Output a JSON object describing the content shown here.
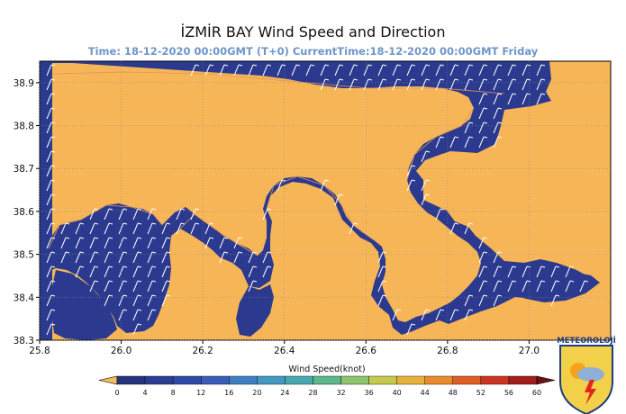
{
  "title": "İZMİR BAY  Wind Speed and Direction",
  "subtitle": "Time: 18-12-2020 00:00GMT (T+0)  CurrentTime:18-12-2020 00:00GMT Friday",
  "map": {
    "lon_range": [
      25.8,
      27.2
    ],
    "lat_range": [
      38.3,
      38.95
    ],
    "lon_ticks": [
      "25.8",
      "26.0",
      "26.2",
      "26.4",
      "26.6",
      "26.8",
      "27.0"
    ],
    "lat_ticks": [
      "38.9",
      "38.8",
      "38.7",
      "38.6",
      "38.5",
      "38.4",
      "38.3"
    ],
    "grid": true,
    "sea_color": "#2b3a8f",
    "land_color": "#f6b557",
    "barb_color": "#ffffff"
  },
  "colorbar": {
    "title": "Wind Speed(knot)",
    "ticks": [
      "0",
      "4",
      "8",
      "12",
      "16",
      "20",
      "24",
      "28",
      "32",
      "36",
      "40",
      "44",
      "48",
      "52",
      "56",
      "60"
    ],
    "colors": [
      "#26337e",
      "#2a3d93",
      "#2f4aa6",
      "#3a5cb6",
      "#3f7fc0",
      "#4199bf",
      "#48a7ae",
      "#5db68c",
      "#8ec36c",
      "#c7c94f",
      "#e6b13d",
      "#e98b2c",
      "#de5e23",
      "#cb3520",
      "#a11d1c"
    ],
    "extend_low_color": "#f1c05c",
    "extend_high_color": "#6d1212"
  },
  "logo": {
    "text": "METEOROLOJİ"
  }
}
